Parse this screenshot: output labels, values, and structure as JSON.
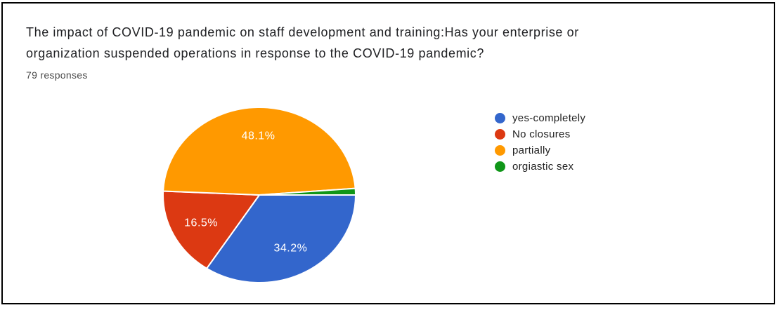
{
  "header": {
    "title_lines": [
      "The impact of COVID-19 pandemic on staff development and training:Has your enterprise or",
      "organization suspended operations in response to the COVID-19 pandemic?"
    ],
    "response_count": "79 responses"
  },
  "legend": {
    "items": [
      {
        "label": "yes-completely",
        "color": "#3366CC"
      },
      {
        "label": "No closures",
        "color": "#DC3912"
      },
      {
        "label": "partially",
        "color": "#FF9900"
      },
      {
        "label": "orgiastic sex",
        "color": "#109618"
      }
    ]
  },
  "chart_data": {
    "type": "pie",
    "title": "The impact of COVID-19 pandemic on staff development and training:Has your enterprise or organization suspended operations in response to the COVID-19 pandemic?",
    "subtitle": "79 responses",
    "categories": [
      "yes-completely",
      "No closures",
      "partially",
      "orgiastic sex"
    ],
    "values_pct": [
      34.2,
      16.5,
      48.1,
      1.2
    ],
    "displayed_slice_labels": [
      "34.2%",
      "16.5%",
      "48.1%",
      ""
    ],
    "colors": [
      "#3366CC",
      "#DC3912",
      "#FF9900",
      "#109618"
    ],
    "slice_order": "clockwise-from-3-oclock",
    "legend_position": "right",
    "slice_label_color": "#ffffff",
    "slice_border_color": "#ffffff"
  }
}
